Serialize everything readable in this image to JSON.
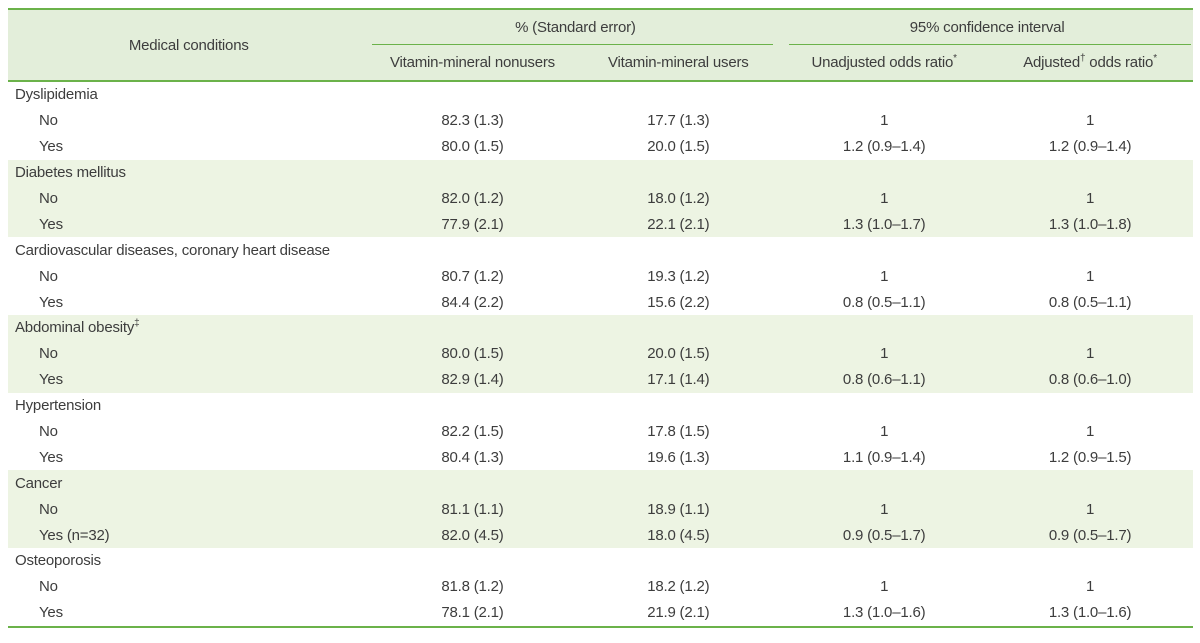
{
  "table": {
    "header": {
      "medical_conditions": "Medical conditions",
      "group_standard_error": "% (Standard error)",
      "group_confidence_interval": "95% confidence interval",
      "col_nonusers": "Vitamin-mineral nonusers",
      "col_users": "Vitamin-mineral users",
      "col_unadjusted": {
        "text": "Unadjusted odds ratio",
        "sup": "*"
      },
      "col_adjusted": {
        "pre": "Adjusted",
        "sup1": "†",
        "post": " odds ratio",
        "sup2": "*"
      }
    },
    "groups": [
      {
        "condition": "Dyslipidemia",
        "sup": "",
        "rows": [
          {
            "label": "No",
            "nonusers": "82.3 (1.3)",
            "users": "17.7 (1.3)",
            "unadjusted": "1",
            "adjusted": "1"
          },
          {
            "label": "Yes",
            "nonusers": "80.0 (1.5)",
            "users": "20.0 (1.5)",
            "unadjusted": "1.2 (0.9–1.4)",
            "adjusted": "1.2 (0.9–1.4)"
          }
        ]
      },
      {
        "condition": "Diabetes mellitus",
        "sup": "",
        "rows": [
          {
            "label": "No",
            "nonusers": "82.0 (1.2)",
            "users": "18.0 (1.2)",
            "unadjusted": "1",
            "adjusted": "1"
          },
          {
            "label": "Yes",
            "nonusers": "77.9 (2.1)",
            "users": "22.1 (2.1)",
            "unadjusted": "1.3 (1.0–1.7)",
            "adjusted": "1.3 (1.0–1.8)"
          }
        ]
      },
      {
        "condition": "Cardiovascular diseases, coronary heart disease",
        "sup": "",
        "rows": [
          {
            "label": "No",
            "nonusers": "80.7 (1.2)",
            "users": "19.3 (1.2)",
            "unadjusted": "1",
            "adjusted": "1"
          },
          {
            "label": "Yes",
            "nonusers": "84.4 (2.2)",
            "users": "15.6 (2.2)",
            "unadjusted": "0.8 (0.5–1.1)",
            "adjusted": "0.8 (0.5–1.1)"
          }
        ]
      },
      {
        "condition": "Abdominal obesity",
        "sup": "‡",
        "rows": [
          {
            "label": "No",
            "nonusers": "80.0 (1.5)",
            "users": "20.0 (1.5)",
            "unadjusted": "1",
            "adjusted": "1"
          },
          {
            "label": "Yes",
            "nonusers": "82.9 (1.4)",
            "users": "17.1 (1.4)",
            "unadjusted": "0.8 (0.6–1.1)",
            "adjusted": "0.8 (0.6–1.0)"
          }
        ]
      },
      {
        "condition": "Hypertension",
        "sup": "",
        "rows": [
          {
            "label": "No",
            "nonusers": "82.2 (1.5)",
            "users": "17.8 (1.5)",
            "unadjusted": "1",
            "adjusted": "1"
          },
          {
            "label": "Yes",
            "nonusers": "80.4 (1.3)",
            "users": "19.6 (1.3)",
            "unadjusted": "1.1 (0.9–1.4)",
            "adjusted": "1.2 (0.9–1.5)"
          }
        ]
      },
      {
        "condition": "Cancer",
        "sup": "",
        "rows": [
          {
            "label": "No",
            "nonusers": "81.1 (1.1)",
            "users": "18.9 (1.1)",
            "unadjusted": "1",
            "adjusted": "1"
          },
          {
            "label": "Yes (n=32)",
            "nonusers": "82.0 (4.5)",
            "users": "18.0 (4.5)",
            "unadjusted": "0.9 (0.5–1.7)",
            "adjusted": "0.9 (0.5–1.7)"
          }
        ]
      },
      {
        "condition": "Osteoporosis",
        "sup": "",
        "rows": [
          {
            "label": "No",
            "nonusers": "81.8 (1.2)",
            "users": "18.2 (1.2)",
            "unadjusted": "1",
            "adjusted": "1"
          },
          {
            "label": "Yes",
            "nonusers": "78.1 (2.1)",
            "users": "21.9 (2.1)",
            "unadjusted": "1.3 (1.0–1.6)",
            "adjusted": "1.3 (1.0–1.6)"
          }
        ]
      }
    ],
    "colors": {
      "border_green": "#6bb24a",
      "header_background": "#e3eeda",
      "band_background": "#edf4e3"
    }
  }
}
